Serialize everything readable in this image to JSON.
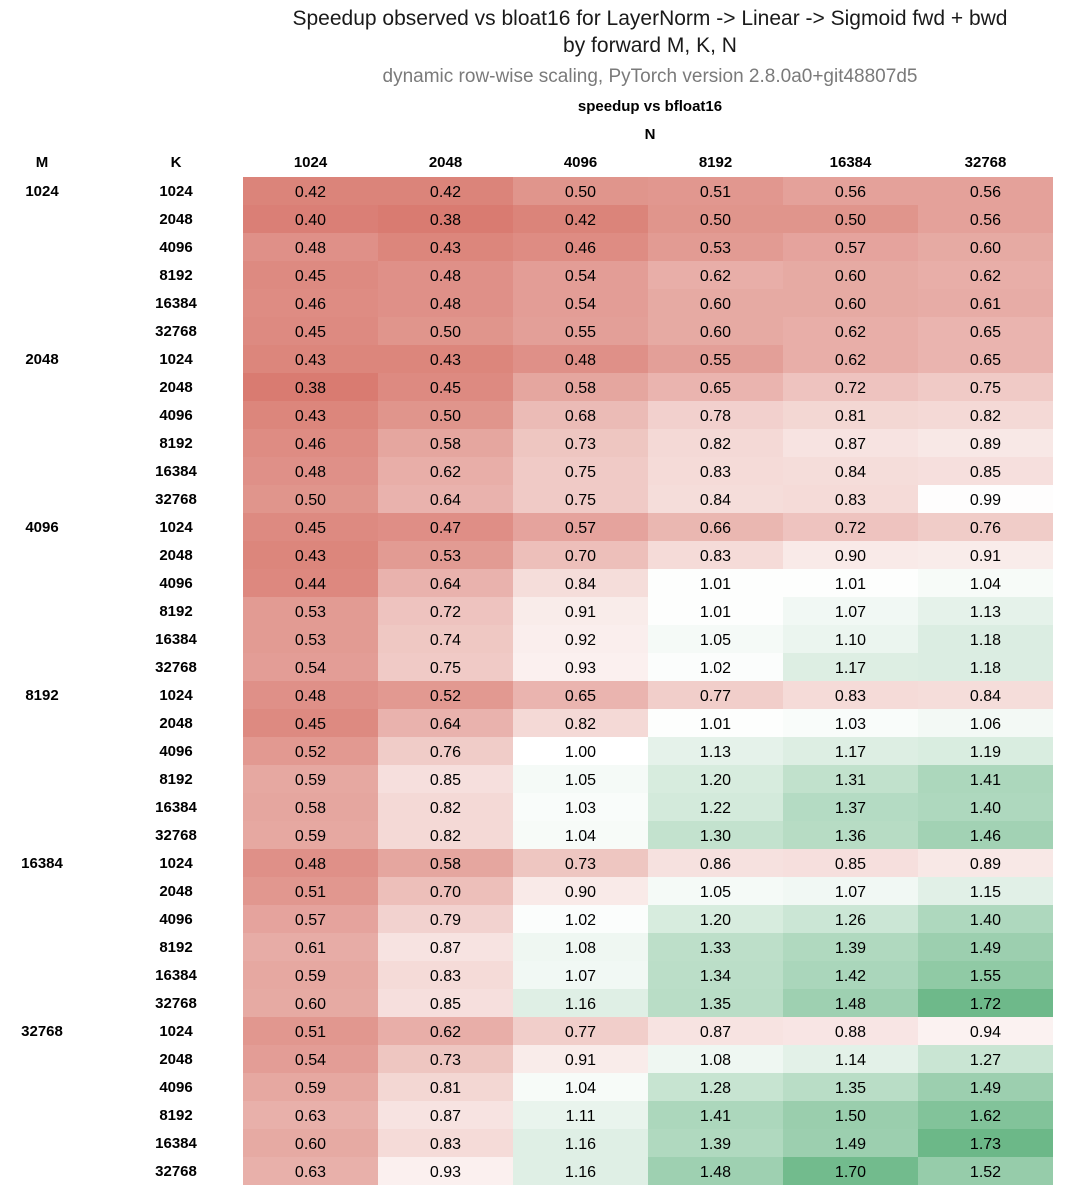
{
  "chart_data": {
    "type": "heatmap",
    "title": "Speedup observed vs bloat16 for LayerNorm -> Linear -> Sigmoid fwd + bwd",
    "title_line2": "by forward M, K, N",
    "subtitle": "dynamic row-wise scaling, PyTorch version 2.8.0a0+git48807d5",
    "metric_label": "speedup vs bfloat16",
    "column_axis_label": "N",
    "row_header_m": "M",
    "row_header_k": "K",
    "n_values": [
      "1024",
      "2048",
      "4096",
      "8192",
      "16384",
      "32768"
    ],
    "k_values": [
      "1024",
      "2048",
      "4096",
      "8192",
      "16384",
      "32768"
    ],
    "groups": [
      {
        "m": "1024",
        "rows": [
          [
            "0.42",
            "0.42",
            "0.50",
            "0.51",
            "0.56",
            "0.56"
          ],
          [
            "0.40",
            "0.38",
            "0.42",
            "0.50",
            "0.50",
            "0.56"
          ],
          [
            "0.48",
            "0.43",
            "0.46",
            "0.53",
            "0.57",
            "0.60"
          ],
          [
            "0.45",
            "0.48",
            "0.54",
            "0.62",
            "0.60",
            "0.62"
          ],
          [
            "0.46",
            "0.48",
            "0.54",
            "0.60",
            "0.60",
            "0.61"
          ],
          [
            "0.45",
            "0.50",
            "0.55",
            "0.60",
            "0.62",
            "0.65"
          ]
        ]
      },
      {
        "m": "2048",
        "rows": [
          [
            "0.43",
            "0.43",
            "0.48",
            "0.55",
            "0.62",
            "0.65"
          ],
          [
            "0.38",
            "0.45",
            "0.58",
            "0.65",
            "0.72",
            "0.75"
          ],
          [
            "0.43",
            "0.50",
            "0.68",
            "0.78",
            "0.81",
            "0.82"
          ],
          [
            "0.46",
            "0.58",
            "0.73",
            "0.82",
            "0.87",
            "0.89"
          ],
          [
            "0.48",
            "0.62",
            "0.75",
            "0.83",
            "0.84",
            "0.85"
          ],
          [
            "0.50",
            "0.64",
            "0.75",
            "0.84",
            "0.83",
            "0.99"
          ]
        ]
      },
      {
        "m": "4096",
        "rows": [
          [
            "0.45",
            "0.47",
            "0.57",
            "0.66",
            "0.72",
            "0.76"
          ],
          [
            "0.43",
            "0.53",
            "0.70",
            "0.83",
            "0.90",
            "0.91"
          ],
          [
            "0.44",
            "0.64",
            "0.84",
            "1.01",
            "1.01",
            "1.04"
          ],
          [
            "0.53",
            "0.72",
            "0.91",
            "1.01",
            "1.07",
            "1.13"
          ],
          [
            "0.53",
            "0.74",
            "0.92",
            "1.05",
            "1.10",
            "1.18"
          ],
          [
            "0.54",
            "0.75",
            "0.93",
            "1.02",
            "1.17",
            "1.18"
          ]
        ]
      },
      {
        "m": "8192",
        "rows": [
          [
            "0.48",
            "0.52",
            "0.65",
            "0.77",
            "0.83",
            "0.84"
          ],
          [
            "0.45",
            "0.64",
            "0.82",
            "1.01",
            "1.03",
            "1.06"
          ],
          [
            "0.52",
            "0.76",
            "1.00",
            "1.13",
            "1.17",
            "1.19"
          ],
          [
            "0.59",
            "0.85",
            "1.05",
            "1.20",
            "1.31",
            "1.41"
          ],
          [
            "0.58",
            "0.82",
            "1.03",
            "1.22",
            "1.37",
            "1.40"
          ],
          [
            "0.59",
            "0.82",
            "1.04",
            "1.30",
            "1.36",
            "1.46"
          ]
        ]
      },
      {
        "m": "16384",
        "rows": [
          [
            "0.48",
            "0.58",
            "0.73",
            "0.86",
            "0.85",
            "0.89"
          ],
          [
            "0.51",
            "0.70",
            "0.90",
            "1.05",
            "1.07",
            "1.15"
          ],
          [
            "0.57",
            "0.79",
            "1.02",
            "1.20",
            "1.26",
            "1.40"
          ],
          [
            "0.61",
            "0.87",
            "1.08",
            "1.33",
            "1.39",
            "1.49"
          ],
          [
            "0.59",
            "0.83",
            "1.07",
            "1.34",
            "1.42",
            "1.55"
          ],
          [
            "0.60",
            "0.85",
            "1.16",
            "1.35",
            "1.48",
            "1.72"
          ]
        ]
      },
      {
        "m": "32768",
        "rows": [
          [
            "0.51",
            "0.62",
            "0.77",
            "0.87",
            "0.88",
            "0.94"
          ],
          [
            "0.54",
            "0.73",
            "0.91",
            "1.08",
            "1.14",
            "1.27"
          ],
          [
            "0.59",
            "0.81",
            "1.04",
            "1.28",
            "1.35",
            "1.49"
          ],
          [
            "0.63",
            "0.87",
            "1.11",
            "1.41",
            "1.50",
            "1.62"
          ],
          [
            "0.60",
            "0.83",
            "1.16",
            "1.39",
            "1.49",
            "1.73"
          ],
          [
            "0.63",
            "0.93",
            "1.16",
            "1.48",
            "1.70",
            "1.52"
          ]
        ]
      }
    ],
    "color_scale": {
      "low_color": "#d97b71",
      "mid_color": "#ffffff",
      "high_color": "#6cb888",
      "low_value": 0.38,
      "mid_value": 1.0,
      "high_value": 1.73
    }
  }
}
